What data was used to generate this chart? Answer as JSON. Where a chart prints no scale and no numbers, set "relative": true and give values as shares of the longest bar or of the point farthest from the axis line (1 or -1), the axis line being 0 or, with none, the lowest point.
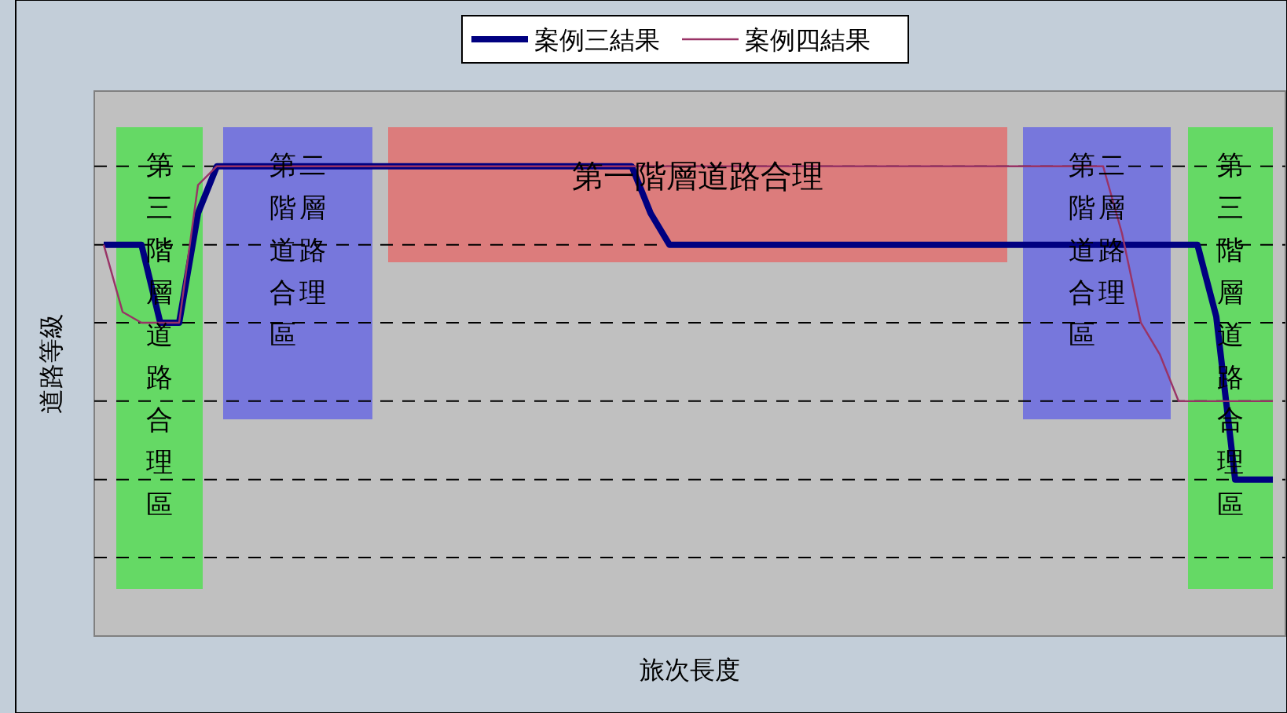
{
  "chart_data": {
    "type": "line",
    "relative": true,
    "xlabel": "旅次長度",
    "ylabel": "道路等級",
    "legend": "top",
    "marker": "none",
    "ref_lines": [
      {
        "axis": "y",
        "value": 1,
        "line_style": "dashed"
      },
      {
        "axis": "y",
        "value": 0.833,
        "line_style": "dashed"
      },
      {
        "axis": "y",
        "value": 0.667,
        "line_style": "dashed"
      },
      {
        "axis": "y",
        "value": 0.5,
        "line_style": "dashed"
      },
      {
        "axis": "y",
        "value": 0.333,
        "line_style": "dashed"
      },
      {
        "axis": "y",
        "value": 0.167,
        "line_style": "dashed"
      }
    ],
    "categories": [
      null,
      null,
      null,
      null,
      null,
      null,
      null,
      null,
      null,
      null,
      null,
      null,
      null,
      null,
      null,
      null,
      null,
      null,
      null,
      null,
      null,
      null,
      null,
      null,
      null,
      null,
      null,
      null,
      null,
      null,
      null,
      null,
      null,
      null,
      null,
      null,
      null,
      null,
      null,
      null,
      null,
      null,
      null,
      null,
      null,
      null,
      null,
      null,
      null,
      null,
      null,
      null,
      null,
      null,
      null,
      null,
      null,
      null,
      null,
      null,
      null,
      null,
      null
    ],
    "series": [
      {
        "name": "案例三結果",
        "color": "#000080",
        "values": [
          0.833,
          0.833,
          0.833,
          0.667,
          0.667,
          0.9,
          1,
          1,
          1,
          1,
          1,
          1,
          1,
          1,
          1,
          1,
          1,
          1,
          1,
          1,
          1,
          1,
          1,
          1,
          1,
          1,
          1,
          1,
          1,
          0.9,
          0.833,
          0.833,
          0.833,
          0.833,
          0.833,
          0.833,
          0.833,
          0.833,
          0.833,
          0.833,
          0.833,
          0.833,
          0.833,
          0.833,
          0.833,
          0.833,
          0.833,
          0.833,
          0.833,
          0.833,
          0.833,
          0.833,
          0.833,
          0.833,
          0.833,
          0.833,
          0.833,
          0.833,
          0.833,
          0.68,
          0.333,
          0.333,
          0.333
        ]
      },
      {
        "name": "案例四結果",
        "color": "#993366",
        "values": [
          0.833,
          0.69,
          0.667,
          0.667,
          0.667,
          0.96,
          1,
          1,
          1,
          1,
          1,
          1,
          1,
          1,
          1,
          1,
          1,
          1,
          1,
          1,
          1,
          1,
          1,
          1,
          1,
          1,
          1,
          1,
          1,
          1,
          1,
          1,
          1,
          1,
          1,
          1,
          1,
          1,
          1,
          1,
          1,
          1,
          1,
          1,
          1,
          1,
          1,
          1,
          1,
          1,
          1,
          1,
          1,
          1,
          0.857,
          0.667,
          0.6,
          0.5,
          0.5,
          0.5,
          0.5,
          0.5,
          0.5
        ]
      }
    ],
    "annotations": [
      "第三階層道路合理區",
      "第二階層道路合理區",
      "第一階層道路合理",
      "第二階層道路合理區",
      "第三階層道路合理區"
    ]
  }
}
